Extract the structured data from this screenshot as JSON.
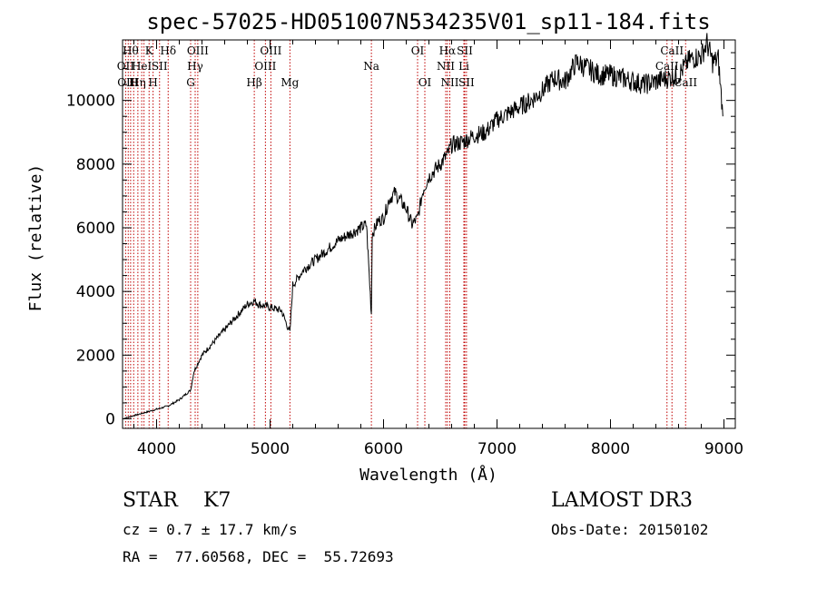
{
  "chart_data": {
    "type": "line",
    "title": "spec-57025-HD051007N534235V01_sp11-184.fits",
    "xlabel": "Wavelength (Å)",
    "ylabel": "Flux (relative)",
    "xlim": [
      3700,
      9100
    ],
    "ylim": [
      -300,
      11900
    ],
    "xticks": [
      4000,
      5000,
      6000,
      7000,
      8000,
      9000
    ],
    "yticks": [
      0,
      2000,
      4000,
      6000,
      8000,
      10000
    ],
    "series": [
      {
        "x": [
          3700,
          3800,
          3900,
          4000,
          4100,
          4200,
          4300,
          4330,
          4400,
          4500,
          4600,
          4700,
          4800,
          4861,
          4900,
          5000,
          5100,
          5175,
          5200,
          5300,
          5400,
          5500,
          5600,
          5700,
          5800,
          5850,
          5893,
          5900,
          5950,
          6000,
          6050,
          6100,
          6200,
          6250,
          6300,
          6350,
          6400,
          6450,
          6500,
          6563,
          6600,
          6700,
          6800,
          6900,
          7000,
          7100,
          7200,
          7300,
          7400,
          7500,
          7600,
          7700,
          7800,
          7900,
          8000,
          8100,
          8200,
          8300,
          8400,
          8500,
          8600,
          8700,
          8800,
          8850,
          8900,
          8950,
          8990
        ],
        "y": [
          0,
          100,
          200,
          300,
          400,
          600,
          900,
          1500,
          2000,
          2400,
          2800,
          3200,
          3600,
          3700,
          3600,
          3500,
          3400,
          2700,
          4200,
          4700,
          5000,
          5300,
          5600,
          5800,
          6000,
          6100,
          3300,
          5800,
          6200,
          6300,
          6900,
          7100,
          6600,
          6100,
          6300,
          7200,
          7600,
          7800,
          8000,
          8300,
          8600,
          8700,
          8900,
          9000,
          9400,
          9600,
          9800,
          10000,
          10300,
          10700,
          10600,
          11200,
          11000,
          10800,
          10800,
          10700,
          10600,
          10500,
          10600,
          10700,
          10800,
          11300,
          11400,
          11800,
          11200,
          11300,
          9500
        ]
      }
    ],
    "lines": [
      {
        "wave": 3727,
        "label": "OII",
        "row": 1
      },
      {
        "wave": 3750,
        "label": "OIII",
        "row": 2
      },
      {
        "wave": 3771,
        "label": "Hθ",
        "row": 0
      },
      {
        "wave": 3798,
        "label": "H",
        "row": 2
      },
      {
        "wave": 3835,
        "label": "Hη",
        "row": 2
      },
      {
        "wave": 3869,
        "label": "HeI",
        "row": 1
      },
      {
        "wave": 3889,
        "label": "",
        "row": 0
      },
      {
        "wave": 3934,
        "label": "K",
        "row": 0
      },
      {
        "wave": 3969,
        "label": "H",
        "row": 2
      },
      {
        "wave": 4026,
        "label": "SII",
        "row": 1
      },
      {
        "wave": 4102,
        "label": "Hδ",
        "row": 0
      },
      {
        "wave": 4300,
        "label": "G",
        "row": 2
      },
      {
        "wave": 4340,
        "label": "Hγ",
        "row": 1
      },
      {
        "wave": 4363,
        "label": "OIII",
        "row": 0
      },
      {
        "wave": 4861,
        "label": "Hβ",
        "row": 2
      },
      {
        "wave": 4959,
        "label": "OIII",
        "row": 1
      },
      {
        "wave": 5007,
        "label": "OIII",
        "row": 0
      },
      {
        "wave": 5175,
        "label": "Mg",
        "row": 2
      },
      {
        "wave": 5893,
        "label": "Na",
        "row": 1
      },
      {
        "wave": 6300,
        "label": "OI",
        "row": 0
      },
      {
        "wave": 6364,
        "label": "OI",
        "row": 2
      },
      {
        "wave": 6548,
        "label": "NII",
        "row": 1
      },
      {
        "wave": 6563,
        "label": "Hα",
        "row": 0
      },
      {
        "wave": 6584,
        "label": "NII",
        "row": 2
      },
      {
        "wave": 6708,
        "label": "Li",
        "row": 1
      },
      {
        "wave": 6716,
        "label": "SII",
        "row": 0
      },
      {
        "wave": 6731,
        "label": "SII",
        "row": 2
      },
      {
        "wave": 8498,
        "label": "CaII",
        "row": 1
      },
      {
        "wave": 8542,
        "label": "CaII",
        "row": 0
      },
      {
        "wave": 8662,
        "label": "CaII",
        "row": 2
      }
    ]
  },
  "info": {
    "class": "STAR    K7",
    "redshift": "cz = 0.7 ± 17.7 km/s",
    "coords": "RA =  77.60568, DEC =  55.72693",
    "survey": "LAMOST DR3",
    "obsdate": "Obs-Date: 20150102"
  }
}
